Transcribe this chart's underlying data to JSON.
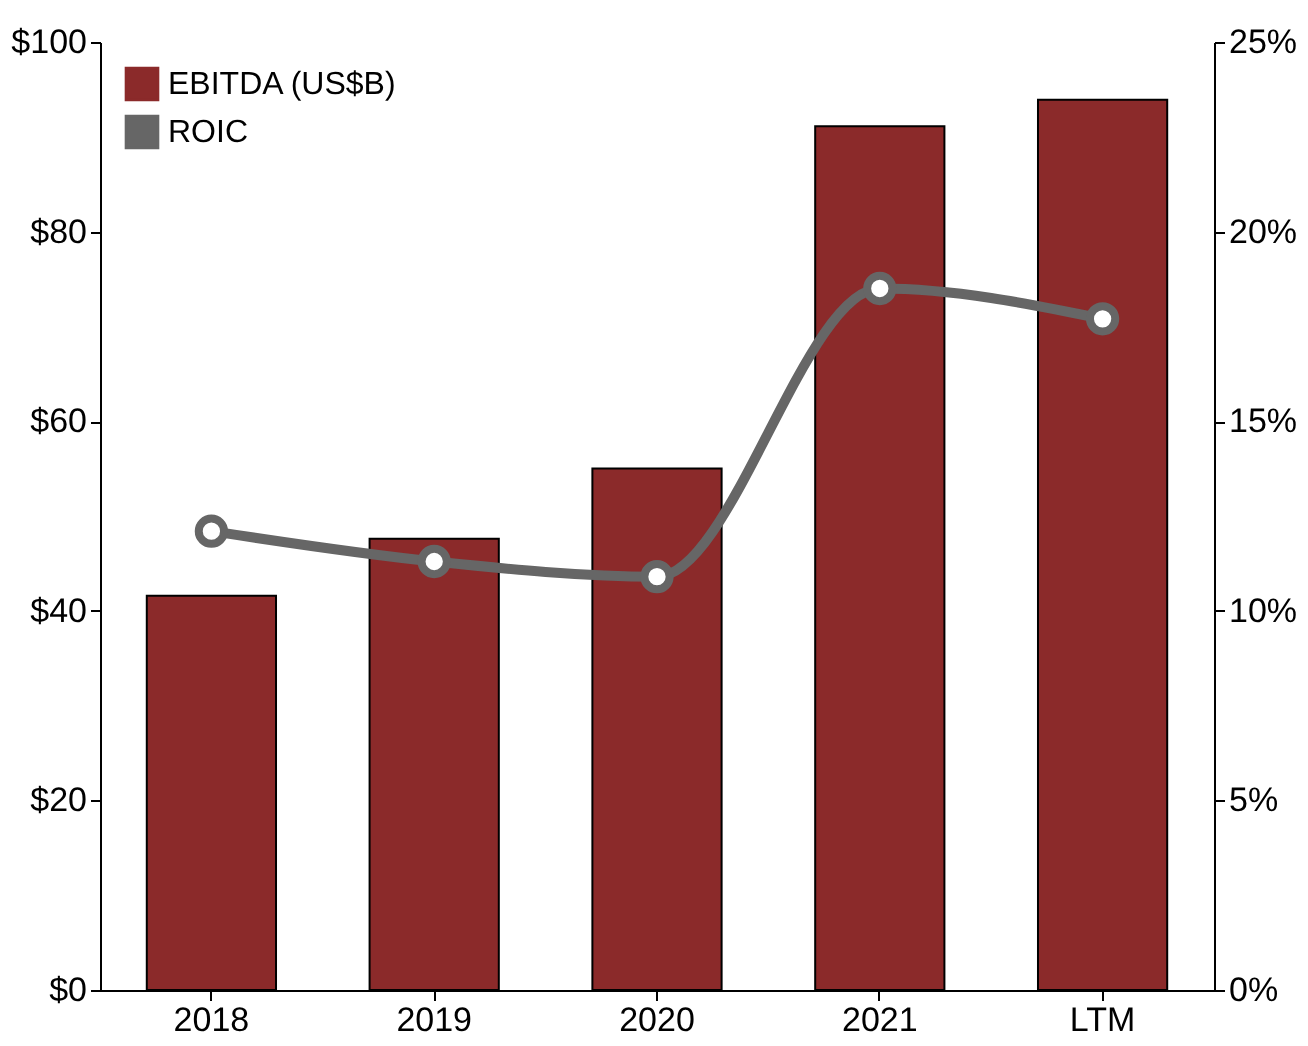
{
  "chart_data": {
    "type": "bar",
    "categories": [
      "2018",
      "2019",
      "2020",
      "2021",
      "LTM"
    ],
    "series": [
      {
        "name": "EBITDA (US$B)",
        "color": "#8b2a2a",
        "values": [
          41.6,
          47.6,
          55,
          91.1,
          93.9
        ]
      },
      {
        "name": "ROIC",
        "type": "line",
        "axis": "y2",
        "color": "#666666",
        "marker": "circle",
        "values": [
          12.1,
          11.3,
          10.9,
          18.5,
          17.7
        ]
      }
    ],
    "ylim": [
      0,
      100
    ],
    "yticks": [
      {
        "value": 0,
        "label": "$0"
      },
      {
        "value": 20,
        "label": "$20"
      },
      {
        "value": 40,
        "label": "$40"
      },
      {
        "value": 60,
        "label": "$60"
      },
      {
        "value": 80,
        "label": "$80"
      },
      {
        "value": 100,
        "label": "$100"
      }
    ],
    "y2lim": [
      0,
      25
    ],
    "y2ticks": [
      {
        "value": 0,
        "label": "0%"
      },
      {
        "value": 5,
        "label": "5%"
      },
      {
        "value": 10,
        "label": "10%"
      },
      {
        "value": 15,
        "label": "15%"
      },
      {
        "value": 20,
        "label": "20%"
      },
      {
        "value": 25,
        "label": "25%"
      }
    ],
    "legend": "top left",
    "grid": false
  }
}
